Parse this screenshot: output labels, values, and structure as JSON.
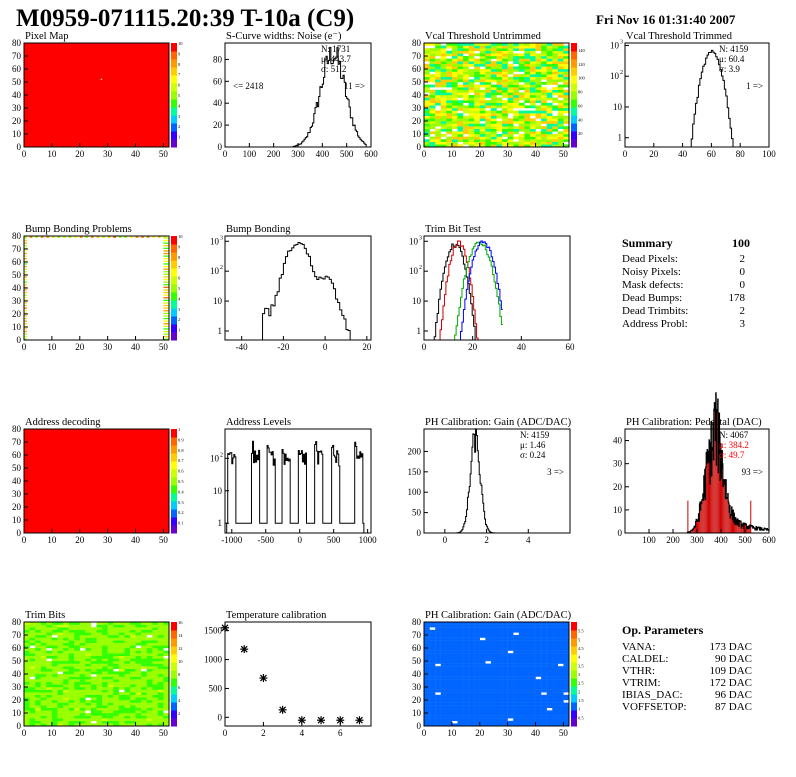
{
  "header": {
    "title": "M0959-071115.20:39 T-10a (C9)",
    "date": "Fri Nov 16 01:31:40 2007"
  },
  "colors": {
    "palette": [
      "#6600cc",
      "#3300ff",
      "#0066ff",
      "#00ccff",
      "#00ff99",
      "#33ff00",
      "#99ff00",
      "#ccff00",
      "#ffff00",
      "#ffcc00",
      "#ff9900",
      "#ff6600",
      "#ff0000"
    ],
    "hist_line": "#000000",
    "trim_red": "#cc0000",
    "trim_green": "#00aa00",
    "trim_blue": "#0000ff",
    "pedestal_fill": "#cc0000",
    "pedestal_label": "#ff0000"
  },
  "chart_data": [
    {
      "id": "pixel-map",
      "type": "heatmap",
      "title": "Pixel Map",
      "xlim": [
        0,
        52
      ],
      "ylim": [
        0,
        80
      ],
      "xticks": [
        0,
        10,
        20,
        30,
        40,
        50
      ],
      "yticks": [
        0,
        10,
        20,
        30,
        40,
        50,
        60,
        70,
        80
      ],
      "palette_range": [
        0,
        10
      ],
      "palette_ticks": [
        1,
        2,
        3,
        4,
        5,
        6,
        7,
        8,
        9,
        10
      ],
      "fill": "uniform",
      "level": 1.0,
      "mark": "dot",
      "mark_point": {
        "x": 27.5,
        "y": 52.5
      }
    },
    {
      "id": "scurve-noise",
      "type": "histogram",
      "title": "S-Curve widths: Noise (e⁻)",
      "xlim": [
        0,
        600
      ],
      "ylim": [
        0,
        95
      ],
      "xticks": [
        0,
        100,
        200,
        300,
        400,
        500,
        600
      ],
      "yticks": [
        0,
        20,
        40,
        60,
        80
      ],
      "shape": {
        "kind": "gauss",
        "mean": 443.7,
        "sigma": 51.2,
        "amp": 85,
        "from": 280,
        "to": 580,
        "bins": 60
      },
      "stats": [
        "N: 1731",
        "μ: 443.7",
        "σ: 51.2"
      ],
      "labels": [
        {
          "text": "<= 2418",
          "pos": "left"
        },
        {
          "text": "11 =>",
          "pos": "right"
        }
      ]
    },
    {
      "id": "vcal-untrimmed",
      "type": "heatmap",
      "title": "Vcal Threshold Untrimmed",
      "xlim": [
        0,
        52
      ],
      "ylim": [
        0,
        80
      ],
      "xticks": [
        0,
        10,
        20,
        30,
        40,
        50
      ],
      "yticks": [
        0,
        10,
        20,
        30,
        40,
        50,
        60,
        70,
        80
      ],
      "palette_range": [
        0,
        150
      ],
      "palette_ticks": [
        20,
        40,
        60,
        80,
        100,
        120,
        140
      ],
      "fill": "noisy",
      "level": 0.55,
      "spread": 0.22,
      "gap_prob": 0.1
    },
    {
      "id": "vcal-trimmed",
      "type": "histogram",
      "title": "Vcal Threshold Trimmed",
      "xlim": [
        0,
        100
      ],
      "ylim": [
        0.5,
        1200
      ],
      "log": true,
      "xticks": [
        0,
        20,
        40,
        60,
        80,
        100
      ],
      "yticks": [
        1,
        10,
        100,
        1000
      ],
      "shape": {
        "kind": "gauss",
        "mean": 60.4,
        "sigma": 3.9,
        "amp": 600,
        "from": 42,
        "to": 82,
        "bins": 40
      },
      "stats": [
        "N: 4159",
        "μ: 60.4",
        "σ: 3.9"
      ],
      "labels": [
        {
          "text": "1 =>",
          "pos": "right"
        }
      ]
    },
    {
      "id": "bump-problems",
      "type": "heatmap",
      "title": "Bump Bonding Problems",
      "xlim": [
        0,
        52
      ],
      "ylim": [
        0,
        80
      ],
      "xticks": [
        0,
        10,
        20,
        30,
        40,
        50
      ],
      "yticks": [
        0,
        10,
        20,
        30,
        40,
        50,
        60,
        70,
        80
      ],
      "palette_range": [
        0,
        10
      ],
      "palette_ticks": [
        1,
        2,
        3,
        4,
        5,
        6,
        7,
        8,
        9,
        10
      ],
      "fill": "bump-problems"
    },
    {
      "id": "bump-bonding",
      "type": "histogram",
      "title": "Bump Bonding",
      "xlim": [
        -48,
        22
      ],
      "ylim": [
        0.5,
        1500
      ],
      "log": true,
      "xticks": [
        -40,
        -20,
        0,
        20
      ],
      "yticks": [
        1,
        10,
        100,
        1000
      ],
      "shape": {
        "kind": "double",
        "p1": {
          "mean": -13,
          "sigma": 3.5,
          "amp": 900
        },
        "p2": {
          "mean": 0,
          "sigma": 3,
          "amp": 60
        },
        "tail": 4,
        "from": -30,
        "to": 12,
        "bins": 42
      }
    },
    {
      "id": "trim-bit-test",
      "type": "line",
      "title": "Trim Bit Test",
      "xlim": [
        0,
        60
      ],
      "ylim": [
        0.5,
        1500
      ],
      "log": true,
      "xticks": [
        0,
        20,
        40,
        60
      ],
      "yticks": [
        1,
        10,
        100,
        1000
      ],
      "series": [
        {
          "color": "#000000",
          "mean": 12.5,
          "sigma": 2.2,
          "amp": 800
        },
        {
          "color": "#cc0000",
          "mean": 14,
          "sigma": 2.0,
          "amp": 900
        },
        {
          "color": "#00aa00",
          "mean": 22.5,
          "sigma": 2.6,
          "amp": 900
        },
        {
          "color": "#0000ff",
          "mean": 24,
          "sigma": 2.4,
          "amp": 950
        }
      ]
    },
    {
      "id": "address-decoding",
      "type": "heatmap",
      "title": "Address decoding",
      "xlim": [
        0,
        52
      ],
      "ylim": [
        0,
        80
      ],
      "xticks": [
        0,
        10,
        20,
        30,
        40,
        50
      ],
      "yticks": [
        0,
        10,
        20,
        30,
        40,
        50,
        60,
        70,
        80
      ],
      "palette_range": [
        0,
        1
      ],
      "palette_ticks": [
        0.1,
        0.2,
        0.3,
        0.4,
        0.5,
        0.6,
        0.7,
        0.8,
        0.9,
        1.0
      ],
      "fill": "uniform",
      "level": 1.0
    },
    {
      "id": "address-levels",
      "type": "histogram",
      "title": "Address Levels",
      "xlim": [
        -1100,
        1050
      ],
      "ylim": [
        0.5,
        800
      ],
      "log": true,
      "xticks": [
        -1000,
        -500,
        0,
        500,
        1000
      ],
      "yticks": [
        1,
        10,
        100
      ],
      "shape": {
        "kind": "multi",
        "peaks": [
          -1000,
          -650,
          -420,
          -200,
          40,
          280,
          530,
          870
        ],
        "width": 150,
        "amp": 300
      }
    },
    {
      "id": "ph-gain-hist",
      "type": "histogram",
      "title": "PH Calibration: Gain (ADC/DAC)",
      "xlim": [
        -1,
        6
      ],
      "ylim": [
        0,
        255
      ],
      "xticks": [
        0,
        2,
        4
      ],
      "yticks": [
        0,
        50,
        100,
        150,
        200
      ],
      "shape": {
        "kind": "gauss",
        "mean": 1.46,
        "sigma": 0.24,
        "amp": 230,
        "from": 0,
        "to": 2.6,
        "bins": 60
      },
      "stats": [
        "N: 4159",
        "μ: 1.46",
        "σ: 0.24"
      ],
      "labels": [
        {
          "text": "3 =>",
          "pos": "right"
        }
      ]
    },
    {
      "id": "ph-pedestal",
      "type": "histogram",
      "title": "PH Calibration: Pedestal (DAC)",
      "xlim": [
        0,
        600
      ],
      "ylim": [
        0,
        45
      ],
      "xticks": [
        100,
        200,
        300,
        400,
        500,
        600
      ],
      "yticks": [
        0,
        10,
        20,
        30,
        40
      ],
      "shape": {
        "kind": "pedestal",
        "mean": 370,
        "sigma": 35,
        "amp": 38,
        "tail": 9,
        "from": 260,
        "to": 600,
        "bins": 170,
        "fill_from": 270,
        "fill_to": 525,
        "marks": [
          262,
          524
        ]
      },
      "stats": [
        "N: 4067",
        "μ: 384.2",
        "σ: 49.7"
      ],
      "stats_red_from": 1,
      "labels": [
        {
          "text": "93 =>",
          "pos": "right"
        }
      ]
    },
    {
      "id": "trim-bits",
      "type": "heatmap",
      "title": "Trim Bits",
      "xlim": [
        0,
        52
      ],
      "ylim": [
        0,
        80
      ],
      "xticks": [
        0,
        10,
        20,
        30,
        40,
        50
      ],
      "yticks": [
        0,
        10,
        20,
        30,
        40,
        50,
        60,
        70,
        80
      ],
      "palette_range": [
        0,
        16
      ],
      "palette_ticks": [
        2,
        4,
        6,
        8,
        10,
        12,
        14,
        16
      ],
      "fill": "noisy",
      "level": 0.48,
      "spread": 0.06,
      "gap_prob": 0.02
    },
    {
      "id": "temperature-calibration",
      "type": "scatter",
      "title": "Temperature calibration",
      "xlim": [
        0,
        7.6
      ],
      "ylim": [
        -150,
        1650
      ],
      "xticks": [
        0,
        2,
        4,
        6
      ],
      "yticks": [
        0,
        500,
        1000,
        1500
      ],
      "x": [
        0,
        1,
        2,
        3,
        4,
        5,
        6,
        7
      ],
      "y": [
        1550,
        1180,
        680,
        130,
        -50,
        -50,
        -50,
        -50
      ]
    },
    {
      "id": "ph-gain-map",
      "type": "heatmap",
      "title": "PH Calibration: Gain (ADC/DAC)",
      "xlim": [
        0,
        52
      ],
      "ylim": [
        0,
        80
      ],
      "xticks": [
        0,
        10,
        20,
        30,
        40,
        50
      ],
      "yticks": [
        0,
        10,
        20,
        30,
        40,
        50,
        60,
        70,
        80
      ],
      "palette_range": [
        0,
        6
      ],
      "palette_ticks": [
        0.5,
        1,
        1.5,
        2,
        2.5,
        3,
        3.5,
        4,
        4.5,
        5,
        5.5
      ],
      "fill": "noisy",
      "level": 0.18,
      "spread": 0.02,
      "gap_prob": 0.01
    }
  ],
  "summary": {
    "title": "Summary",
    "total": "100",
    "rows": [
      {
        "label": "Dead Pixels:",
        "value": "2"
      },
      {
        "label": "Noisy Pixels:",
        "value": "0"
      },
      {
        "label": "Mask defects:",
        "value": "0"
      },
      {
        "label": "Dead Bumps:",
        "value": "178"
      },
      {
        "label": "Dead Trimbits:",
        "value": "2"
      },
      {
        "label": "Address Probl:",
        "value": "3"
      }
    ]
  },
  "parameters": {
    "title": "Op. Parameters",
    "rows": [
      {
        "label": "VANA:",
        "value": "173 DAC"
      },
      {
        "label": "CALDEL:",
        "value": "90 DAC"
      },
      {
        "label": "VTHR:",
        "value": "109 DAC"
      },
      {
        "label": "VTRIM:",
        "value": "172 DAC"
      },
      {
        "label": "IBIAS_DAC:",
        "value": "96 DAC"
      },
      {
        "label": "VOFFSETOP:",
        "value": "87 DAC"
      }
    ]
  }
}
